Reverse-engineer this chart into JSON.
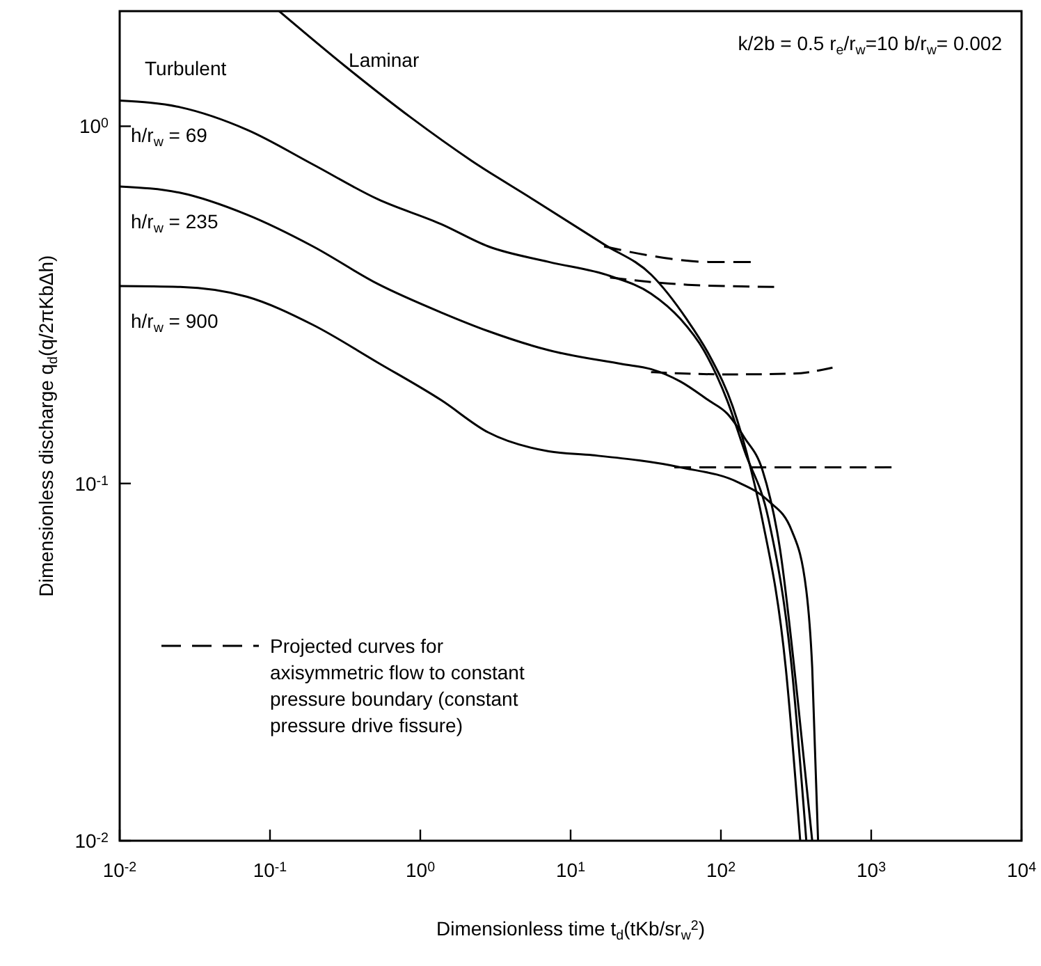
{
  "chart_data": {
    "type": "line",
    "xlabel": "Dimensionless time t$_{d}$(tKb/sr$_{w}$$^{2}$)",
    "ylabel": "Dimensionless discharge q$_{d}$(q/2πKbΔh)",
    "log": "xy",
    "grid": false,
    "legend": "bottom left",
    "xlim": [
      0.01,
      10000
    ],
    "xticks": [
      {
        "value": 0.01,
        "label": "10$^{-2}$"
      },
      {
        "value": 0.1,
        "label": "10$^{-1}$"
      },
      {
        "value": 1,
        "label": "10$^{0}$"
      },
      {
        "value": 10,
        "label": "10$^{1}$"
      },
      {
        "value": 100,
        "label": "10$^{2}$"
      },
      {
        "value": 1000,
        "label": "10$^{3}$"
      },
      {
        "value": 10000,
        "label": "10$^{4}$"
      }
    ],
    "ylim": [
      0.01,
      2.1
    ],
    "yticks": [
      {
        "value": 0.01,
        "label": "10$^{-2}$"
      },
      {
        "value": 0.1,
        "label": "10$^{-1}$"
      },
      {
        "value": 1,
        "label": "10$^{0}$"
      }
    ],
    "annotations": [
      "Turbulent",
      "k/2b = 0.5   r$_{e}$/r$_{w}$=10   b/r$_{w}$= 0.002"
    ],
    "series": [
      {
        "name": "Laminar",
        "color": "#000000",
        "line_style": "solid",
        "x": [
          0.115,
          0.318,
          0.86,
          2.2,
          5.6,
          16.7,
          34.4,
          59,
          84.5,
          120,
          158,
          188,
          270,
          337
        ],
        "values": [
          2.1,
          1.47,
          1.06,
          0.8,
          0.625,
          0.467,
          0.384,
          0.289,
          0.227,
          0.164,
          0.11,
          0.0797,
          0.0305,
          0.01
        ]
      },
      {
        "name": "h/r$_{w}$ = 69",
        "color": "#000000",
        "line_style": "solid",
        "x": [
          0.01,
          0.0253,
          0.0706,
          0.193,
          0.521,
          1.38,
          2.83,
          7.17,
          18.3,
          34.3,
          53.7,
          76.9,
          110,
          144,
          207,
          296,
          370
        ],
        "values": [
          1.18,
          1.13,
          0.977,
          0.782,
          0.625,
          0.532,
          0.461,
          0.417,
          0.381,
          0.34,
          0.289,
          0.236,
          0.171,
          0.123,
          0.0797,
          0.0305,
          0.01
        ]
      },
      {
        "name": "h/r$_{w}$ = 235",
        "color": "#000000",
        "line_style": "solid",
        "x": [
          0.01,
          0.0253,
          0.0706,
          0.193,
          0.521,
          1.38,
          2.83,
          7.17,
          21.9,
          34.3,
          53.7,
          82.6,
          110,
          144,
          189,
          247,
          323,
          405
        ],
        "values": [
          0.678,
          0.651,
          0.565,
          0.461,
          0.362,
          0.301,
          0.267,
          0.236,
          0.216,
          0.209,
          0.193,
          0.171,
          0.157,
          0.134,
          0.109,
          0.0657,
          0.0252,
          0.01
        ]
      },
      {
        "name": "h/r$_{w}$ = 900",
        "color": "#000000",
        "line_style": "solid",
        "x": [
          0.01,
          0.0253,
          0.0706,
          0.193,
          0.521,
          1.38,
          2.83,
          7.17,
          14,
          53.7,
          132,
          207,
          296,
          370,
          405,
          443
        ],
        "values": [
          0.357,
          0.355,
          0.333,
          0.278,
          0.218,
          0.171,
          0.139,
          0.123,
          0.12,
          0.111,
          0.1005,
          0.0894,
          0.0738,
          0.0502,
          0.0305,
          0.01
        ]
      },
      {
        "name": "Projected curves for axisymmetric flow to constant pressure boundary (constant pressure drive fissure)",
        "color": "#000000",
        "line_style": "dashed",
        "x": [
          16.7,
          34.3,
          82.6,
          158
        ],
        "values": [
          0.461,
          0.434,
          0.417,
          0.417
        ]
      },
      {
        "color": "#000000",
        "line_style": "dashed",
        "x": [
          18.3,
          60,
          226
        ],
        "values": [
          0.377,
          0.36,
          0.355
        ]
      },
      {
        "color": "#000000",
        "line_style": "dashed",
        "x": [
          34.3,
          110,
          300,
          553
        ],
        "values": [
          0.205,
          0.202,
          0.203,
          0.211
        ]
      },
      {
        "color": "#000000",
        "line_style": "dashed",
        "x": [
          49,
          1365
        ],
        "values": [
          0.111,
          0.111
        ]
      }
    ]
  }
}
